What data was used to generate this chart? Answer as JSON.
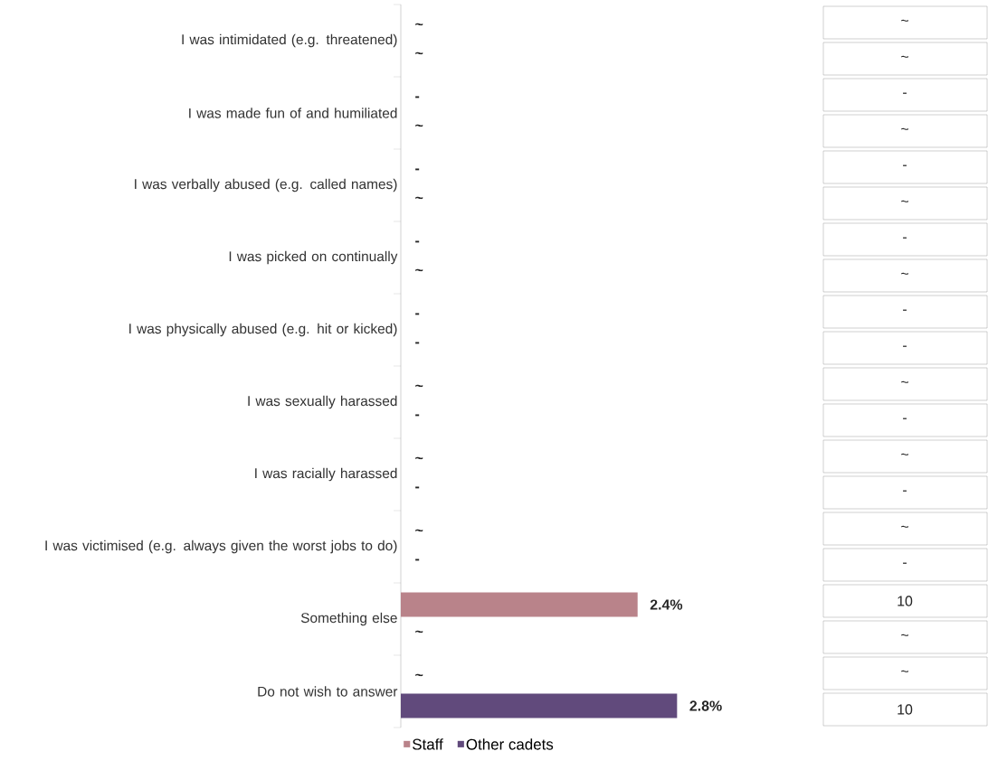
{
  "chart_data": [
    {
      "type": "bar",
      "orientation": "horizontal",
      "legend": "bottom",
      "categories": [
        "I was intimidated (e.g. threatened)",
        "I was made fun of and humiliated",
        "I was verbally abused (e.g. called names)",
        "I was picked on continually",
        "I was physically abused (e.g. hit or kicked)",
        "I was sexually harassed",
        "I was racially harassed",
        "I was victimised (e.g. always given the worst jobs to do)",
        "Something else",
        "Do not wish to answer"
      ],
      "series": [
        {
          "name": "Staff",
          "color": "#b9838a",
          "values": [
            null,
            null,
            null,
            null,
            null,
            null,
            null,
            null,
            2.4,
            null
          ],
          "value_labels": [
            "~",
            "-",
            "-",
            "-",
            "-",
            "~",
            "~",
            "~",
            "2.4%",
            "~"
          ]
        },
        {
          "name": "Other cadets",
          "color": "#614a7c",
          "values": [
            null,
            null,
            null,
            null,
            null,
            null,
            null,
            null,
            null,
            2.8
          ],
          "value_labels": [
            "~",
            "~",
            "~",
            "~",
            "-",
            "-",
            "-",
            "-",
            "~",
            "2.8%"
          ]
        }
      ]
    },
    {
      "type": "other",
      "annotations": [
        "~",
        "~",
        "-",
        "~",
        "-",
        "~",
        "-",
        "~",
        "-",
        "-",
        "~",
        "-",
        "~",
        "-",
        "~",
        "-",
        "10",
        "~",
        "~",
        "10"
      ]
    }
  ]
}
